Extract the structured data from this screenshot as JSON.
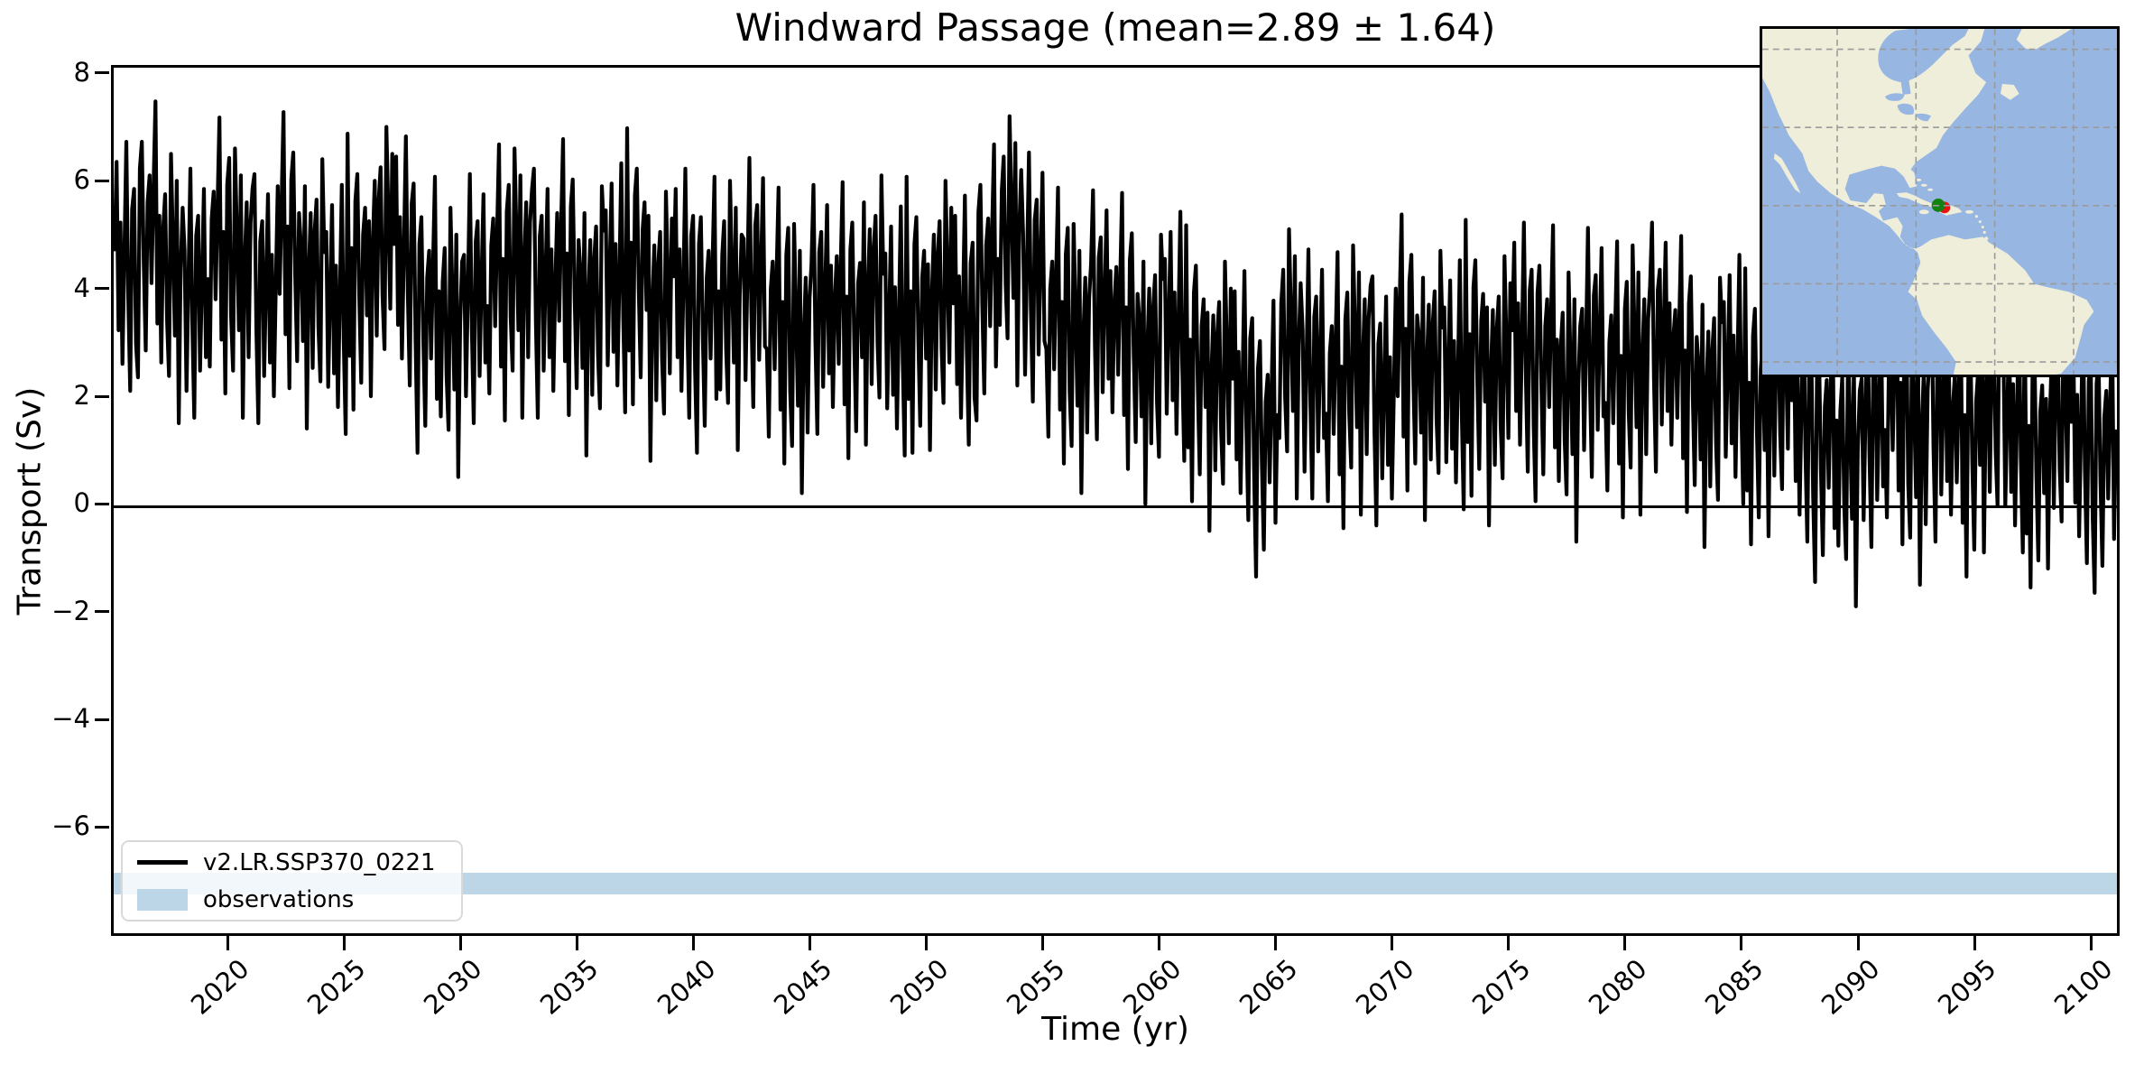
{
  "chart_data": {
    "type": "line",
    "title": "Windward Passage (mean=2.89 ± 1.64)",
    "xlabel": "Time (yr)",
    "ylabel": "Transport (Sv)",
    "xlim": [
      2015,
      2101
    ],
    "ylim": [
      -7.92,
      8.15
    ],
    "grid": false,
    "x_ticks": [
      2020,
      2025,
      2030,
      2035,
      2040,
      2045,
      2050,
      2055,
      2060,
      2065,
      2070,
      2075,
      2080,
      2085,
      2090,
      2095,
      2100
    ],
    "x_tick_labels": [
      "2020",
      "2025",
      "2030",
      "2035",
      "2040",
      "2045",
      "2050",
      "2055",
      "2060",
      "2065",
      "2070",
      "2075",
      "2080",
      "2085",
      "2090",
      "2095",
      "2100"
    ],
    "y_ticks": [
      8,
      6,
      4,
      2,
      0,
      -2,
      -4,
      -6
    ],
    "y_tick_labels": [
      "8",
      "6",
      "4",
      "2",
      "0",
      "−2",
      "−4",
      "−6"
    ],
    "zero_line_y": 0,
    "stats": {
      "mean": 2.89,
      "std": 1.64
    },
    "series": [
      {
        "name": "v2.LR.SSP370_0221",
        "color": "#000000",
        "cadence": "monthly",
        "annual_anchor_start": 2015,
        "annual_mean_anchors": [
          4.4,
          4.9,
          4.3,
          3.9,
          4.6,
          4.4,
          3.8,
          4.7,
          4.2,
          3.6,
          4.3,
          4.8,
          4.5,
          3.5,
          3.3,
          3.8,
          4.1,
          4.4,
          3.9,
          4.2,
          3.7,
          4.0,
          4.4,
          3.6,
          3.9,
          3.5,
          3.8,
          4.1,
          3.3,
          3.0,
          3.6,
          3.4,
          3.9,
          3.2,
          3.5,
          3.8,
          3.4,
          4.1,
          5.0,
          4.2,
          3.3,
          3.0,
          3.5,
          3.2,
          2.8,
          3.1,
          2.6,
          2.3,
          2.0,
          1.2,
          2.9,
          2.4,
          2.1,
          2.6,
          1.9,
          2.8,
          2.5,
          2.2,
          2.7,
          2.4,
          2.9,
          2.6,
          2.1,
          2.8,
          2.3,
          2.6,
          2.9,
          2.4,
          2.0,
          2.3,
          1.8,
          2.2,
          1.6,
          1.1,
          0.9,
          1.5,
          1.8,
          1.3,
          1.6,
          1.2,
          1.9,
          1.4,
          1.0,
          1.6,
          1.2,
          0.9
        ],
        "monthly_anomaly_patterns": [
          [
            0.3,
            1.6,
            -0.9,
            0.7,
            -1.4,
            0.2,
            1.9,
            -0.4,
            -1.8,
            0.9,
            1.2,
            -1.1
          ],
          [
            -0.6,
            0.8,
            2.1,
            -1.2,
            0.4,
            -2.0,
            1.1,
            1.5,
            -0.3,
            -1.6,
            0.6,
            1.0
          ],
          [
            1.2,
            -0.7,
            -1.5,
            1.8,
            0.5,
            -0.9,
            1.4,
            -2.2,
            0.1,
            1.0,
            -1.3,
            0.7
          ]
        ],
        "pattern_amp": 1.25,
        "pattern_shift_step": 5,
        "approx_max": 7.4,
        "approx_min": -2.0
      }
    ],
    "observations_band": {
      "label": "observations",
      "y_range": [
        -7.2,
        -6.8
      ],
      "color": "#bcd6e8"
    }
  },
  "legend": {
    "items": [
      {
        "label": "v2.LR.SSP370_0221",
        "swatch": "line",
        "color": "#000000"
      },
      {
        "label": "observations",
        "swatch": "patch",
        "color": "#bcd6e8"
      }
    ]
  },
  "inset_map": {
    "region": "North, Central and South America with Caribbean",
    "marker": {
      "name": "Windward Passage",
      "lon": -74,
      "lat": 20
    },
    "marker_colors": {
      "green": "#128212",
      "red": "#e81414"
    },
    "ocean_color": "#97b6e1",
    "land_color": "#efeeda",
    "gridline_color": "#9a9a9a",
    "grid_lons": [
      -100,
      -80,
      -60,
      -40
    ],
    "grid_lats": [
      60,
      40,
      20,
      0,
      -20
    ]
  },
  "colors": {
    "line": "#000000",
    "band": "#bcd6e8",
    "spine": "#000000"
  }
}
